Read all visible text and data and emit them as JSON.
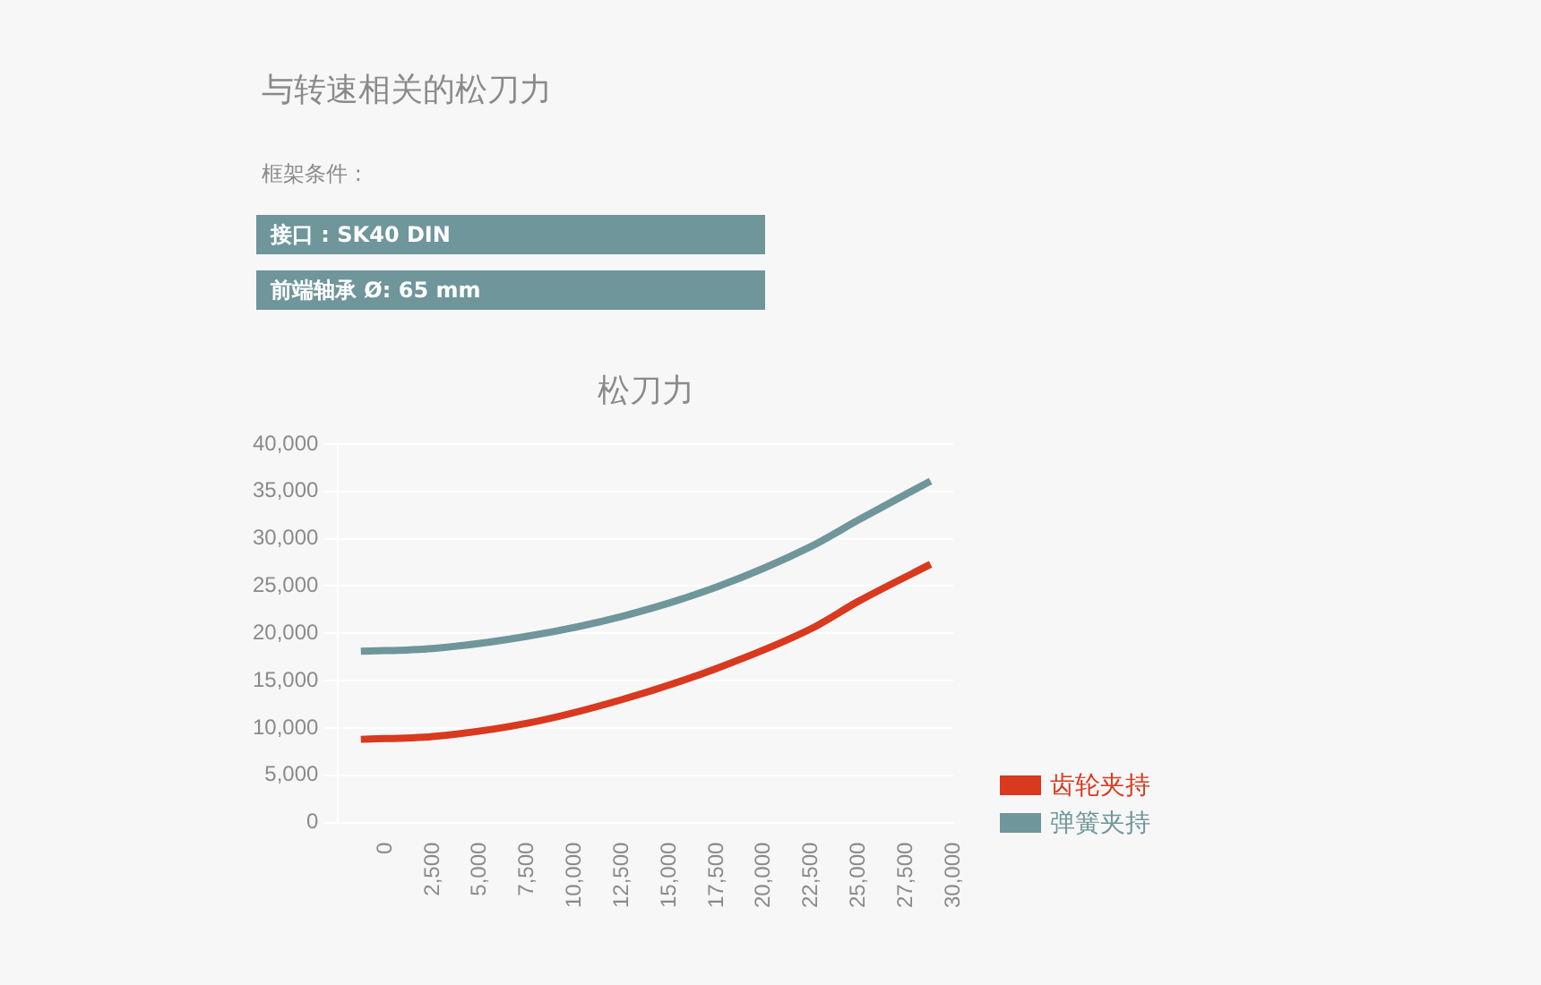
{
  "chart_data": {
    "type": "line",
    "title": "松刀力",
    "annotations": [
      "与转速相关的松刀力",
      "框架条件 :",
      "接口 : SK40 DIN",
      "前端轴承 Ø: 65 mm"
    ],
    "series": [
      {
        "name": "齿轮夹持",
        "color": "#d9391e",
        "x": [
          -1300,
          2500,
          7500,
          12500,
          17500,
          22500,
          25000,
          28800
        ],
        "values": [
          8800,
          9100,
          10500,
          13000,
          16300,
          20500,
          23400,
          27300
        ]
      },
      {
        "name": "弹簧夹持",
        "color": "#6f969a",
        "x": [
          -1300,
          2500,
          7500,
          12500,
          17500,
          22500,
          25000,
          28800
        ],
        "values": [
          18100,
          18400,
          19700,
          21800,
          24900,
          29200,
          32000,
          36100
        ]
      }
    ],
    "xlim": [
      -2500,
      30000
    ],
    "xticks": [
      {
        "value": -2500,
        "label": null
      },
      0,
      {
        "value": 2500,
        "label": "2,500"
      },
      {
        "value": 5000,
        "label": "5,000"
      },
      {
        "value": 7500,
        "label": "7,500"
      },
      {
        "value": 10000,
        "label": "10,000"
      },
      {
        "value": 12500,
        "label": "12,500"
      },
      {
        "value": 15000,
        "label": "15,000"
      },
      {
        "value": 17500,
        "label": "17,500"
      },
      {
        "value": 20000,
        "label": "20,000"
      },
      {
        "value": 22500,
        "label": "22,500"
      },
      {
        "value": 25000,
        "label": "25,000"
      },
      {
        "value": 27500,
        "label": "27,500"
      },
      {
        "value": 30000,
        "label": "30,000"
      }
    ],
    "ylim": [
      0,
      40000
    ],
    "yticks": [
      0,
      {
        "value": 5000,
        "label": "5,000"
      },
      {
        "value": 10000,
        "label": "10,000"
      },
      {
        "value": 15000,
        "label": "15,000"
      },
      {
        "value": 20000,
        "label": "20,000"
      },
      {
        "value": 25000,
        "label": "25,000"
      },
      {
        "value": 30000,
        "label": "30,000"
      },
      {
        "value": 35000,
        "label": "35,000"
      },
      {
        "value": 40000,
        "label": "40,000"
      }
    ],
    "grid": "y",
    "legend": "right",
    "marker": "none",
    "line_style": "solid"
  }
}
